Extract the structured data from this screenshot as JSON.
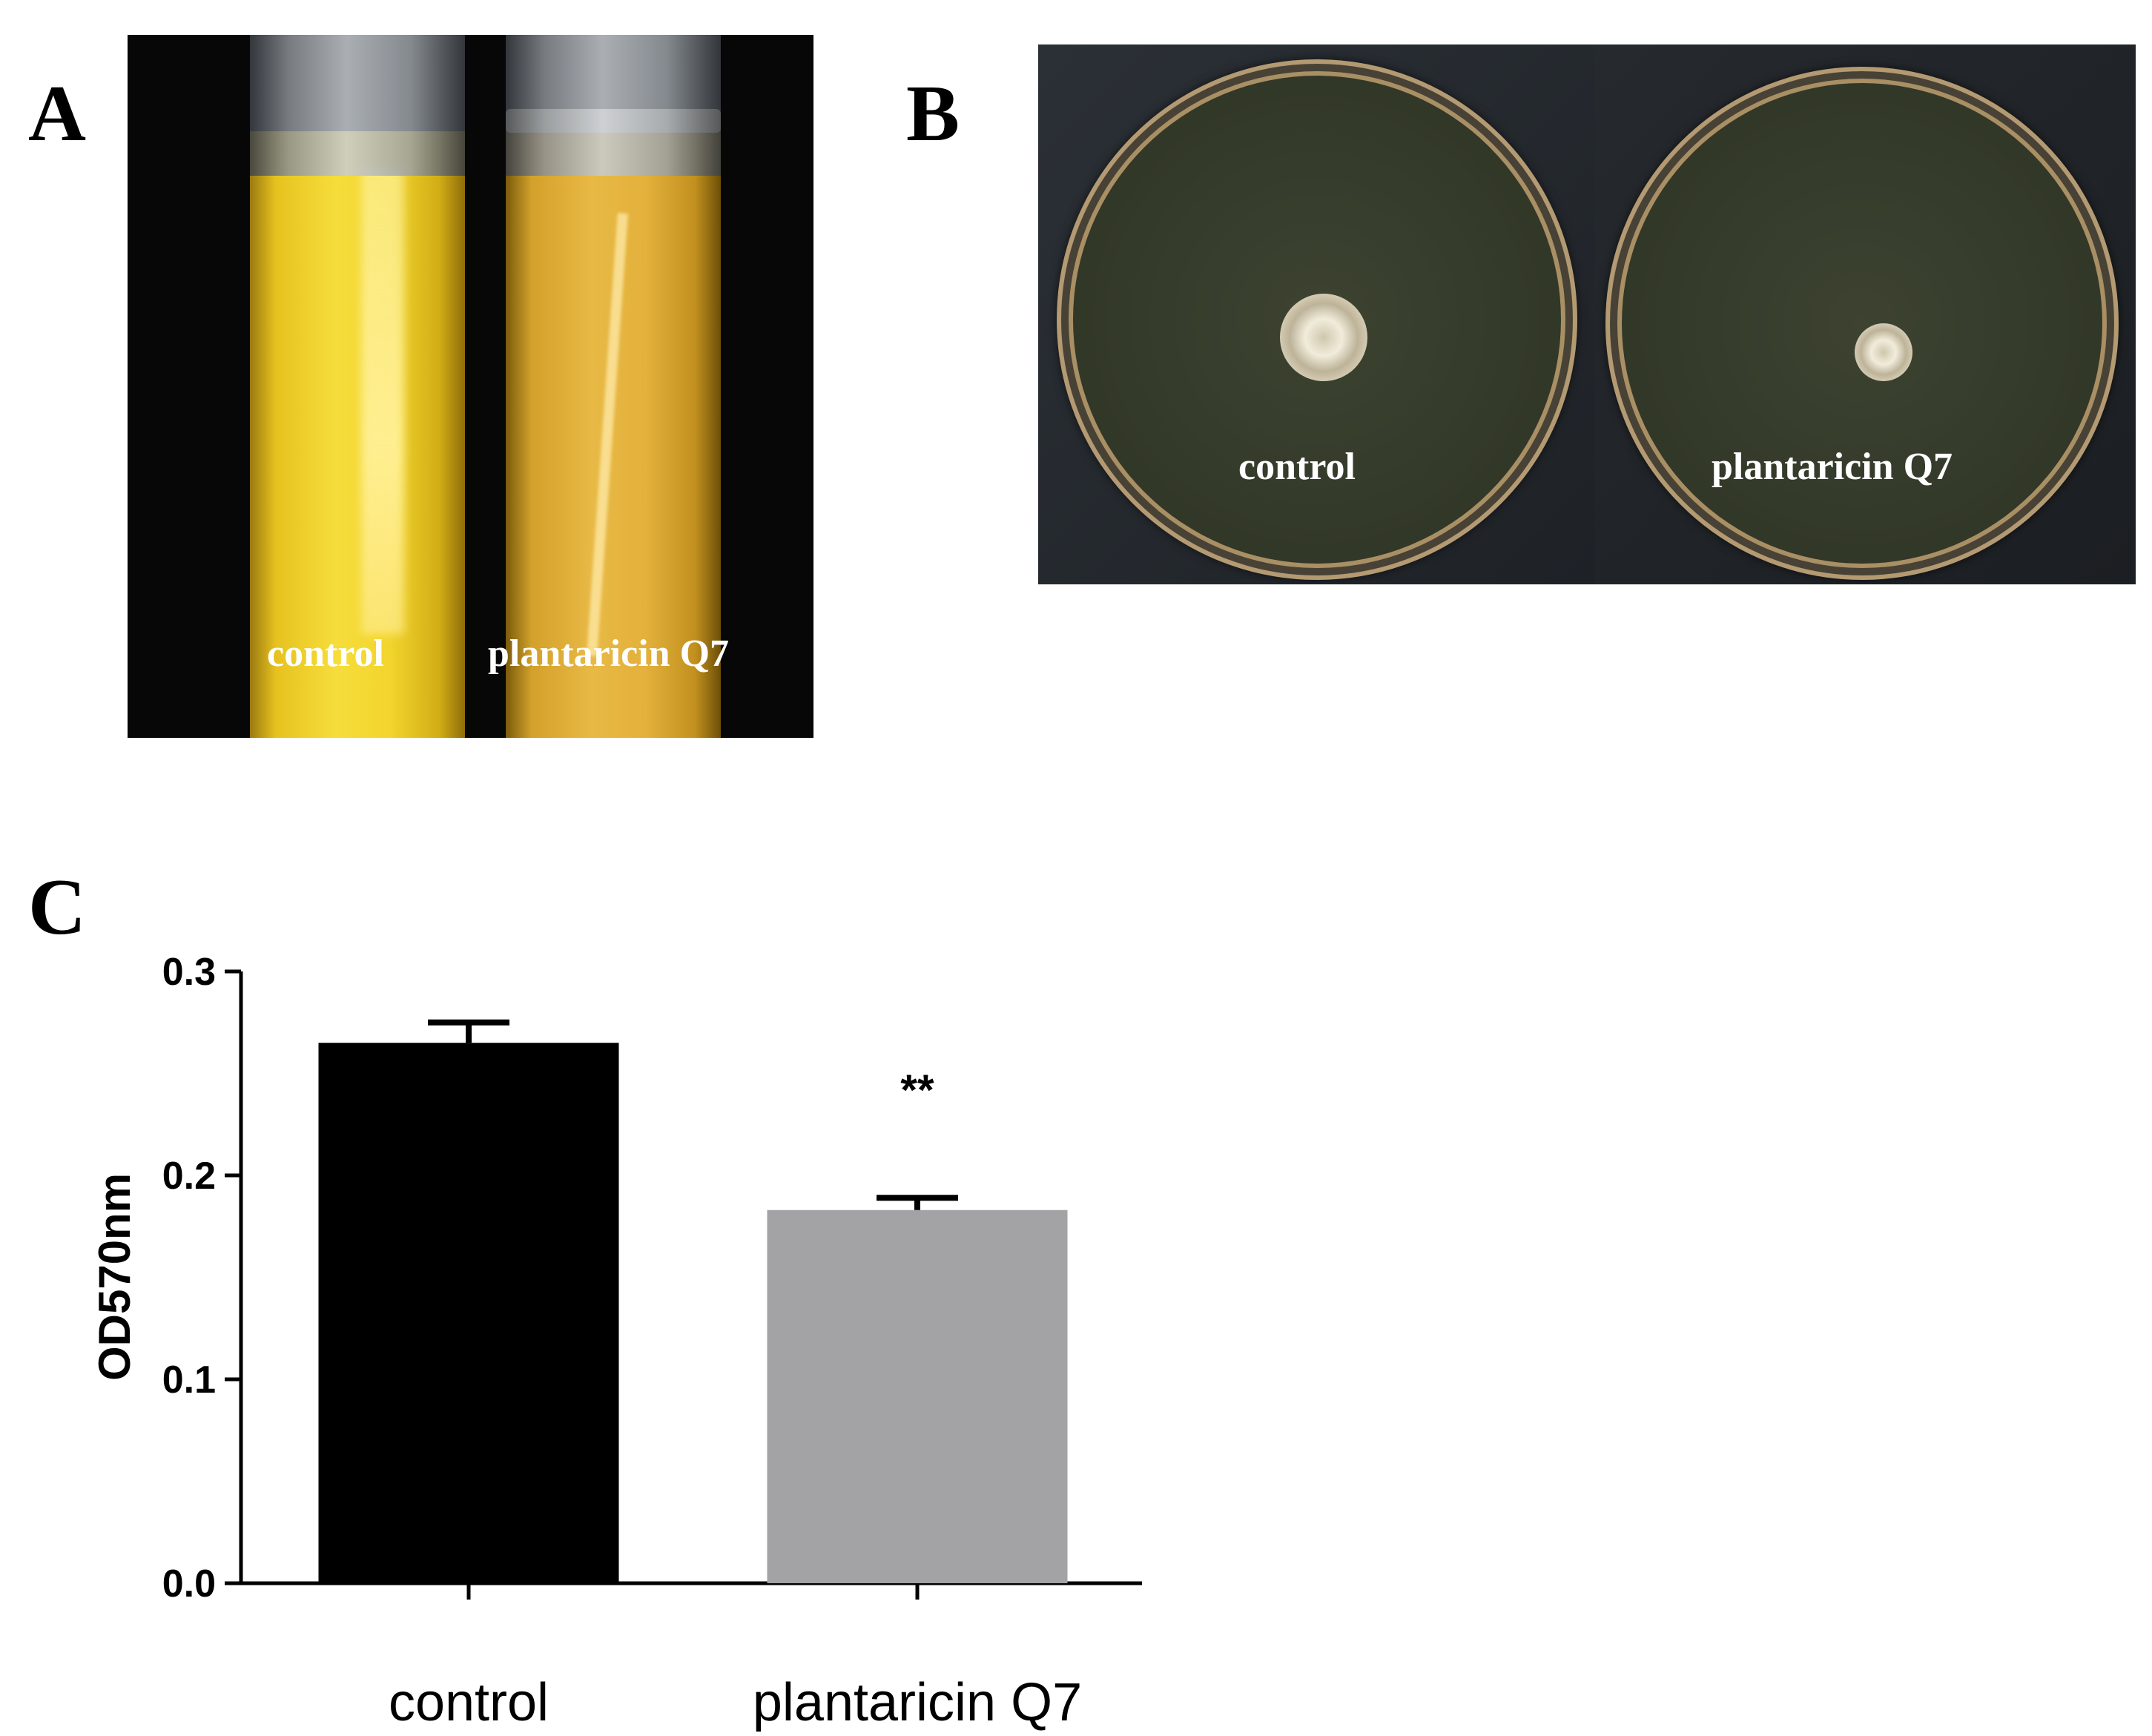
{
  "panels": {
    "a": {
      "letter": "A",
      "tube_labels": [
        "control",
        "plantaricin Q7"
      ]
    },
    "b": {
      "letter": "B",
      "plate_labels": [
        "control",
        "plantaricin Q7"
      ]
    },
    "c": {
      "letter": "C"
    }
  },
  "chart_data": {
    "type": "bar",
    "title": "",
    "xlabel": "",
    "ylabel": "OD570nm",
    "categories": [
      "control",
      "plantaricin Q7"
    ],
    "values": [
      0.265,
      0.183
    ],
    "errors": [
      0.01,
      0.006
    ],
    "ylim": [
      0.0,
      0.3
    ],
    "yticks": [
      "0.0",
      "0.1",
      "0.2",
      "0.3"
    ],
    "bar_colors": [
      "#000000",
      "#a3a3a6"
    ],
    "annotations": [
      {
        "category": "plantaricin Q7",
        "text": "**"
      }
    ],
    "grid": false,
    "legend": "none"
  }
}
